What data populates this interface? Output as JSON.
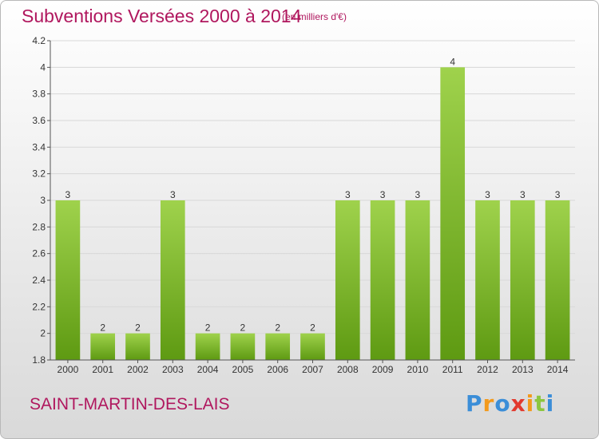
{
  "header": {
    "title": "Subventions Versées 2000 à 2014",
    "unit": "(en milliers d'€)"
  },
  "footer": {
    "commune": "SAINT-MARTIN-DES-LAIS",
    "logo_letters": [
      "P",
      "r",
      "o",
      "x",
      "i",
      "t",
      "i"
    ],
    "logo_colors": [
      "#3b8ed8",
      "#f39a1c",
      "#3b8ed8",
      "#e23a2e",
      "#f39a1c",
      "#8cc63f",
      "#3b8ed8"
    ]
  },
  "colors": {
    "bar_top": "#9fd24c",
    "bar_bottom": "#5e9a12",
    "grid": "#d8d8d8",
    "title": "#b0175e"
  },
  "chart_data": {
    "type": "bar",
    "categories": [
      "2000",
      "2001",
      "2002",
      "2003",
      "2004",
      "2005",
      "2006",
      "2007",
      "2008",
      "2009",
      "2010",
      "2011",
      "2012",
      "2013",
      "2014"
    ],
    "values": [
      3,
      2,
      2,
      3,
      2,
      2,
      2,
      2,
      3,
      3,
      3,
      4,
      3,
      3,
      3
    ],
    "value_labels": [
      "3",
      "2",
      "2",
      "3",
      "2",
      "2",
      "2",
      "2",
      "3",
      "3",
      "3",
      "4",
      "3",
      "3",
      "3"
    ],
    "ylim": [
      1.8,
      4.2
    ],
    "yticks": [
      "1.8",
      "2",
      "2.2",
      "2.4",
      "2.6",
      "2.8",
      "3",
      "3.2",
      "3.4",
      "3.6",
      "3.8",
      "4",
      "4.2"
    ],
    "grid": true
  }
}
